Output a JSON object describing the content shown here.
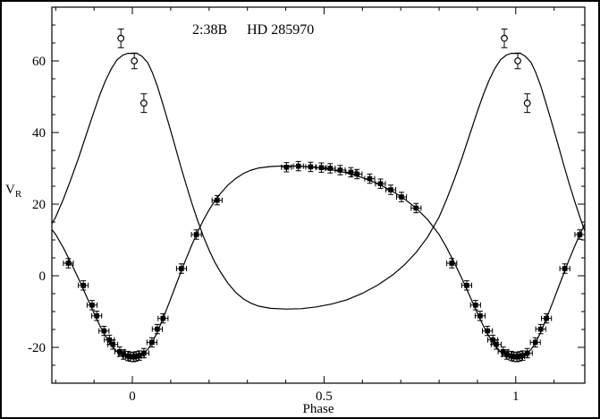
{
  "figure": {
    "title_parts": [
      "2:38B",
      "HD 285970"
    ],
    "xlabel": "Phase",
    "ylabel_main": "V",
    "ylabel_sub": "R"
  },
  "chart_data": {
    "type": "line",
    "title": "2:38B  HD 285970",
    "xlabel": "Phase",
    "ylabel": "V_R",
    "xlim": [
      -0.21,
      1.18
    ],
    "ylim": [
      -30,
      75
    ],
    "x_major_ticks": [
      0,
      0.5,
      1
    ],
    "x_tick_labels": [
      "0",
      "0.5",
      "1"
    ],
    "x_minor_step": 0.1,
    "y_major_ticks": [
      -20,
      0,
      20,
      40,
      60
    ],
    "y_tick_labels": [
      "-20",
      "0",
      "20",
      "40",
      "60"
    ],
    "y_minor_step": 5,
    "period": 1,
    "grid": false,
    "colors": {
      "line": "#000000",
      "marker": "#000000",
      "background": "#ffffff",
      "frame": "#000000"
    },
    "phase_err": 0.013,
    "v_err": 1.3,
    "curves": [
      {
        "name": "primary-model",
        "points": [
          [
            0.0,
            -22.6
          ],
          [
            0.012,
            -22.6
          ],
          [
            0.025,
            -22.0
          ],
          [
            0.04,
            -20.6
          ],
          [
            0.052,
            -18.6
          ],
          [
            0.065,
            -15.8
          ],
          [
            0.08,
            -11.9
          ],
          [
            0.095,
            -7.8
          ],
          [
            0.11,
            -3.6
          ],
          [
            0.125,
            0.6
          ],
          [
            0.14,
            4.7
          ],
          [
            0.155,
            8.6
          ],
          [
            0.17,
            12.2
          ],
          [
            0.185,
            15.5
          ],
          [
            0.2,
            18.4
          ],
          [
            0.215,
            20.9
          ],
          [
            0.23,
            23.0
          ],
          [
            0.25,
            25.4
          ],
          [
            0.27,
            27.2
          ],
          [
            0.29,
            28.6
          ],
          [
            0.31,
            29.5
          ],
          [
            0.33,
            30.1
          ],
          [
            0.36,
            30.5
          ],
          [
            0.4,
            30.7
          ],
          [
            0.44,
            30.6
          ],
          [
            0.48,
            30.2
          ],
          [
            0.52,
            29.6
          ],
          [
            0.56,
            28.7
          ],
          [
            0.6,
            27.4
          ],
          [
            0.64,
            25.7
          ],
          [
            0.68,
            23.5
          ],
          [
            0.71,
            21.4
          ],
          [
            0.74,
            18.9
          ],
          [
            0.77,
            15.7
          ],
          [
            0.8,
            11.5
          ],
          [
            0.82,
            7.8
          ],
          [
            0.84,
            3.6
          ],
          [
            0.86,
            -0.9
          ],
          [
            0.88,
            -5.7
          ],
          [
            0.9,
            -10.5
          ],
          [
            0.915,
            -13.9
          ],
          [
            0.93,
            -16.9
          ],
          [
            0.945,
            -19.4
          ],
          [
            0.96,
            -21.2
          ],
          [
            0.975,
            -22.2
          ],
          [
            0.988,
            -22.6
          ],
          [
            1.0,
            -22.6
          ]
        ]
      },
      {
        "name": "secondary-model",
        "points": [
          [
            0.0,
            62.1
          ],
          [
            0.012,
            62.1
          ],
          [
            0.025,
            61.3
          ],
          [
            0.04,
            59.5
          ],
          [
            0.052,
            56.8
          ],
          [
            0.065,
            53.0
          ],
          [
            0.08,
            47.8
          ],
          [
            0.095,
            42.3
          ],
          [
            0.11,
            36.7
          ],
          [
            0.125,
            31.0
          ],
          [
            0.14,
            25.5
          ],
          [
            0.155,
            20.3
          ],
          [
            0.17,
            15.5
          ],
          [
            0.185,
            11.0
          ],
          [
            0.2,
            7.2
          ],
          [
            0.215,
            3.8
          ],
          [
            0.23,
            1.0
          ],
          [
            0.25,
            -2.2
          ],
          [
            0.27,
            -4.7
          ],
          [
            0.29,
            -6.5
          ],
          [
            0.31,
            -7.7
          ],
          [
            0.33,
            -8.5
          ],
          [
            0.36,
            -9.1
          ],
          [
            0.4,
            -9.3
          ],
          [
            0.44,
            -9.2
          ],
          [
            0.48,
            -8.7
          ],
          [
            0.52,
            -7.9
          ],
          [
            0.56,
            -6.7
          ],
          [
            0.6,
            -4.9
          ],
          [
            0.64,
            -2.6
          ],
          [
            0.68,
            0.3
          ],
          [
            0.71,
            3.1
          ],
          [
            0.74,
            6.5
          ],
          [
            0.77,
            10.8
          ],
          [
            0.8,
            16.4
          ],
          [
            0.82,
            21.4
          ],
          [
            0.84,
            27.0
          ],
          [
            0.86,
            33.0
          ],
          [
            0.88,
            39.5
          ],
          [
            0.9,
            45.9
          ],
          [
            0.915,
            50.5
          ],
          [
            0.93,
            54.5
          ],
          [
            0.945,
            57.8
          ],
          [
            0.96,
            60.3
          ],
          [
            0.975,
            61.6
          ],
          [
            0.988,
            62.1
          ],
          [
            1.0,
            62.1
          ]
        ]
      }
    ],
    "points_primary": [
      [
        0.833,
        3.5
      ],
      [
        0.872,
        -2.7
      ],
      [
        0.895,
        -8.2
      ],
      [
        0.907,
        -11.2
      ],
      [
        0.926,
        -15.4
      ],
      [
        0.94,
        -17.9
      ],
      [
        0.949,
        -19.2
      ],
      [
        0.967,
        -21.2
      ],
      [
        0.977,
        -22.0
      ],
      [
        0.988,
        -22.4
      ],
      [
        0.995,
        -22.6
      ],
      [
        0.003,
        -22.7
      ],
      [
        0.01,
        -22.5
      ],
      [
        0.018,
        -22.3
      ],
      [
        0.03,
        -21.6
      ],
      [
        0.051,
        -18.6
      ],
      [
        0.065,
        -14.9
      ],
      [
        0.08,
        -11.9
      ],
      [
        0.128,
        2.0
      ],
      [
        0.167,
        11.5
      ],
      [
        0.221,
        21.1
      ],
      [
        0.402,
        30.3
      ],
      [
        0.433,
        30.6
      ],
      [
        0.465,
        30.4
      ],
      [
        0.493,
        30.2
      ],
      [
        0.516,
        30.0
      ],
      [
        0.542,
        29.5
      ],
      [
        0.57,
        28.9
      ],
      [
        0.586,
        28.4
      ],
      [
        0.619,
        27.1
      ],
      [
        0.647,
        25.7
      ],
      [
        0.674,
        24.0
      ],
      [
        0.702,
        22.0
      ],
      [
        0.74,
        18.9
      ]
    ],
    "points_secondary": [
      [
        0.97,
        66.3,
        2.6
      ],
      [
        0.005,
        60.0,
        2.2
      ],
      [
        0.03,
        48.2,
        2.6
      ]
    ]
  }
}
